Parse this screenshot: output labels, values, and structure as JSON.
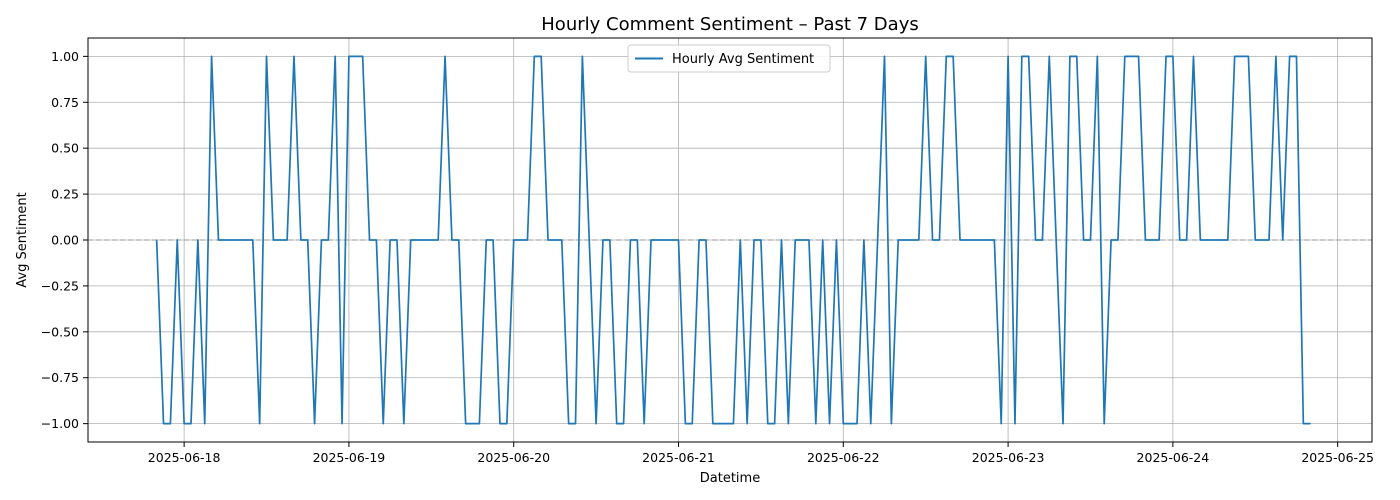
{
  "chart_data": {
    "type": "line",
    "title": "Hourly Comment Sentiment – Past 7 Days",
    "xlabel": "Datetime",
    "ylabel": "Avg Sentiment",
    "xlim": [
      "2025-06-17T10:00",
      "2025-06-25T05:00"
    ],
    "ylim": [
      -1.1,
      1.1
    ],
    "x_ticks": [
      "2025-06-18",
      "2025-06-19",
      "2025-06-20",
      "2025-06-21",
      "2025-06-22",
      "2025-06-23",
      "2025-06-24",
      "2025-06-25"
    ],
    "y_ticks": [
      -1.0,
      -0.75,
      -0.5,
      -0.25,
      0.0,
      0.25,
      0.5,
      0.75,
      1.0
    ],
    "y_tick_labels": [
      "−1.00",
      "−0.75",
      "−0.50",
      "−0.25",
      "0.00",
      "0.25",
      "0.50",
      "0.75",
      "1.00"
    ],
    "grid": true,
    "reference_line": {
      "y": 0.0,
      "style": "dashed",
      "color": "#999999"
    },
    "legend": {
      "placement": "top-center"
    },
    "series": [
      {
        "name": "Hourly Avg Sentiment",
        "color": "#1f77b4",
        "points": [
          [
            "2025-06-17T20:00",
            0
          ],
          [
            "2025-06-17T21:00",
            -1
          ],
          [
            "2025-06-17T22:00",
            -1
          ],
          [
            "2025-06-17T23:00",
            0
          ],
          [
            "2025-06-18T00:00",
            -1
          ],
          [
            "2025-06-18T01:00",
            -1
          ],
          [
            "2025-06-18T02:00",
            0
          ],
          [
            "2025-06-18T03:00",
            -1
          ],
          [
            "2025-06-18T04:00",
            1
          ],
          [
            "2025-06-18T05:00",
            0
          ],
          [
            "2025-06-18T06:00",
            0
          ],
          [
            "2025-06-18T07:00",
            0
          ],
          [
            "2025-06-18T08:00",
            0
          ],
          [
            "2025-06-18T09:00",
            0
          ],
          [
            "2025-06-18T10:00",
            0
          ],
          [
            "2025-06-18T11:00",
            -1
          ],
          [
            "2025-06-18T12:00",
            1
          ],
          [
            "2025-06-18T13:00",
            0
          ],
          [
            "2025-06-18T14:00",
            0
          ],
          [
            "2025-06-18T15:00",
            0
          ],
          [
            "2025-06-18T16:00",
            1
          ],
          [
            "2025-06-18T17:00",
            0
          ],
          [
            "2025-06-18T18:00",
            0
          ],
          [
            "2025-06-18T19:00",
            -1
          ],
          [
            "2025-06-18T20:00",
            0
          ],
          [
            "2025-06-18T21:00",
            0
          ],
          [
            "2025-06-18T22:00",
            1
          ],
          [
            "2025-06-18T23:00",
            -1
          ],
          [
            "2025-06-19T00:00",
            1
          ],
          [
            "2025-06-19T01:00",
            1
          ],
          [
            "2025-06-19T02:00",
            1
          ],
          [
            "2025-06-19T03:00",
            0
          ],
          [
            "2025-06-19T04:00",
            0
          ],
          [
            "2025-06-19T05:00",
            -1
          ],
          [
            "2025-06-19T06:00",
            0
          ],
          [
            "2025-06-19T07:00",
            0
          ],
          [
            "2025-06-19T08:00",
            -1
          ],
          [
            "2025-06-19T09:00",
            0
          ],
          [
            "2025-06-19T10:00",
            0
          ],
          [
            "2025-06-19T11:00",
            0
          ],
          [
            "2025-06-19T12:00",
            0
          ],
          [
            "2025-06-19T13:00",
            0
          ],
          [
            "2025-06-19T14:00",
            1
          ],
          [
            "2025-06-19T15:00",
            0
          ],
          [
            "2025-06-19T16:00",
            0
          ],
          [
            "2025-06-19T17:00",
            -1
          ],
          [
            "2025-06-19T18:00",
            -1
          ],
          [
            "2025-06-19T19:00",
            -1
          ],
          [
            "2025-06-19T20:00",
            0
          ],
          [
            "2025-06-19T21:00",
            0
          ],
          [
            "2025-06-19T22:00",
            -1
          ],
          [
            "2025-06-19T23:00",
            -1
          ],
          [
            "2025-06-20T00:00",
            0
          ],
          [
            "2025-06-20T01:00",
            0
          ],
          [
            "2025-06-20T02:00",
            0
          ],
          [
            "2025-06-20T03:00",
            1
          ],
          [
            "2025-06-20T04:00",
            1
          ],
          [
            "2025-06-20T05:00",
            0
          ],
          [
            "2025-06-20T06:00",
            0
          ],
          [
            "2025-06-20T07:00",
            0
          ],
          [
            "2025-06-20T08:00",
            -1
          ],
          [
            "2025-06-20T09:00",
            -1
          ],
          [
            "2025-06-20T10:00",
            1
          ],
          [
            "2025-06-20T11:00",
            0
          ],
          [
            "2025-06-20T12:00",
            -1
          ],
          [
            "2025-06-20T13:00",
            0
          ],
          [
            "2025-06-20T14:00",
            0
          ],
          [
            "2025-06-20T15:00",
            -1
          ],
          [
            "2025-06-20T16:00",
            -1
          ],
          [
            "2025-06-20T17:00",
            0
          ],
          [
            "2025-06-20T18:00",
            0
          ],
          [
            "2025-06-20T19:00",
            -1
          ],
          [
            "2025-06-20T20:00",
            0
          ],
          [
            "2025-06-20T21:00",
            0
          ],
          [
            "2025-06-20T22:00",
            0
          ],
          [
            "2025-06-20T23:00",
            0
          ],
          [
            "2025-06-21T00:00",
            0
          ],
          [
            "2025-06-21T01:00",
            -1
          ],
          [
            "2025-06-21T02:00",
            -1
          ],
          [
            "2025-06-21T03:00",
            0
          ],
          [
            "2025-06-21T04:00",
            0
          ],
          [
            "2025-06-21T05:00",
            -1
          ],
          [
            "2025-06-21T06:00",
            -1
          ],
          [
            "2025-06-21T07:00",
            -1
          ],
          [
            "2025-06-21T08:00",
            -1
          ],
          [
            "2025-06-21T09:00",
            0
          ],
          [
            "2025-06-21T10:00",
            -1
          ],
          [
            "2025-06-21T11:00",
            0
          ],
          [
            "2025-06-21T12:00",
            0
          ],
          [
            "2025-06-21T13:00",
            -1
          ],
          [
            "2025-06-21T14:00",
            -1
          ],
          [
            "2025-06-21T15:00",
            0
          ],
          [
            "2025-06-21T16:00",
            -1
          ],
          [
            "2025-06-21T17:00",
            0
          ],
          [
            "2025-06-21T18:00",
            0
          ],
          [
            "2025-06-21T19:00",
            0
          ],
          [
            "2025-06-21T20:00",
            -1
          ],
          [
            "2025-06-21T21:00",
            0
          ],
          [
            "2025-06-21T22:00",
            -1
          ],
          [
            "2025-06-21T23:00",
            0
          ],
          [
            "2025-06-22T00:00",
            -1
          ],
          [
            "2025-06-22T01:00",
            -1
          ],
          [
            "2025-06-22T02:00",
            -1
          ],
          [
            "2025-06-22T03:00",
            0
          ],
          [
            "2025-06-22T04:00",
            -1
          ],
          [
            "2025-06-22T05:00",
            0
          ],
          [
            "2025-06-22T06:00",
            1
          ],
          [
            "2025-06-22T07:00",
            -1
          ],
          [
            "2025-06-22T08:00",
            0
          ],
          [
            "2025-06-22T09:00",
            0
          ],
          [
            "2025-06-22T10:00",
            0
          ],
          [
            "2025-06-22T11:00",
            0
          ],
          [
            "2025-06-22T12:00",
            1
          ],
          [
            "2025-06-22T13:00",
            0
          ],
          [
            "2025-06-22T14:00",
            0
          ],
          [
            "2025-06-22T15:00",
            1
          ],
          [
            "2025-06-22T16:00",
            1
          ],
          [
            "2025-06-22T17:00",
            0
          ],
          [
            "2025-06-22T18:00",
            0
          ],
          [
            "2025-06-22T19:00",
            0
          ],
          [
            "2025-06-22T20:00",
            0
          ],
          [
            "2025-06-22T21:00",
            0
          ],
          [
            "2025-06-22T22:00",
            0
          ],
          [
            "2025-06-22T23:00",
            -1
          ],
          [
            "2025-06-23T00:00",
            1
          ],
          [
            "2025-06-23T01:00",
            -1
          ],
          [
            "2025-06-23T02:00",
            1
          ],
          [
            "2025-06-23T03:00",
            1
          ],
          [
            "2025-06-23T04:00",
            0
          ],
          [
            "2025-06-23T05:00",
            0
          ],
          [
            "2025-06-23T06:00",
            1
          ],
          [
            "2025-06-23T07:00",
            0
          ],
          [
            "2025-06-23T08:00",
            -1
          ],
          [
            "2025-06-23T09:00",
            1
          ],
          [
            "2025-06-23T10:00",
            1
          ],
          [
            "2025-06-23T11:00",
            0
          ],
          [
            "2025-06-23T12:00",
            0
          ],
          [
            "2025-06-23T13:00",
            1
          ],
          [
            "2025-06-23T14:00",
            -1
          ],
          [
            "2025-06-23T15:00",
            0
          ],
          [
            "2025-06-23T16:00",
            0
          ],
          [
            "2025-06-23T17:00",
            1
          ],
          [
            "2025-06-23T18:00",
            1
          ],
          [
            "2025-06-23T19:00",
            1
          ],
          [
            "2025-06-23T20:00",
            0
          ],
          [
            "2025-06-23T21:00",
            0
          ],
          [
            "2025-06-23T22:00",
            0
          ],
          [
            "2025-06-23T23:00",
            1
          ],
          [
            "2025-06-24T00:00",
            1
          ],
          [
            "2025-06-24T01:00",
            0
          ],
          [
            "2025-06-24T02:00",
            0
          ],
          [
            "2025-06-24T03:00",
            1
          ],
          [
            "2025-06-24T04:00",
            0
          ],
          [
            "2025-06-24T05:00",
            0
          ],
          [
            "2025-06-24T06:00",
            0
          ],
          [
            "2025-06-24T07:00",
            0
          ],
          [
            "2025-06-24T08:00",
            0
          ],
          [
            "2025-06-24T09:00",
            1
          ],
          [
            "2025-06-24T10:00",
            1
          ],
          [
            "2025-06-24T11:00",
            1
          ],
          [
            "2025-06-24T12:00",
            0
          ],
          [
            "2025-06-24T13:00",
            0
          ],
          [
            "2025-06-24T14:00",
            0
          ],
          [
            "2025-06-24T15:00",
            1
          ],
          [
            "2025-06-24T16:00",
            0
          ],
          [
            "2025-06-24T17:00",
            1
          ],
          [
            "2025-06-24T18:00",
            1
          ],
          [
            "2025-06-24T19:00",
            -1
          ],
          [
            "2025-06-24T20:00",
            -1
          ]
        ]
      }
    ]
  }
}
